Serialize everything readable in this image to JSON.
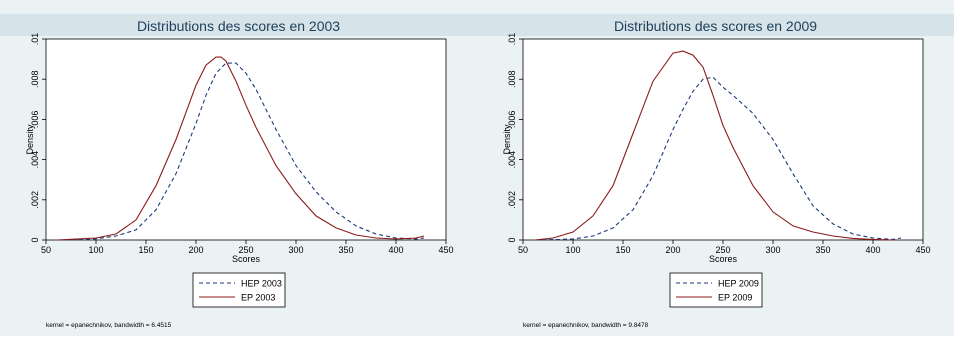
{
  "chart_data": [
    {
      "type": "line",
      "title": "Distributions des scores en 2003",
      "xlabel": "Scores",
      "ylabel": "Density",
      "xlim": [
        50,
        450
      ],
      "ylim": [
        0,
        0.01
      ],
      "x_ticks": [
        "50",
        "100",
        "150",
        "200",
        "250",
        "300",
        "350",
        "400",
        "450"
      ],
      "y_ticks": [
        "0",
        ".002",
        ".004",
        ".006",
        ".008",
        ".01"
      ],
      "legend": "bottom-center",
      "note": "kernel = epanechnikov, bandwidth = 6.4515",
      "series": [
        {
          "name": "HEP 2003",
          "color": "#1a3a7a",
          "dash": "dashed",
          "x": [
            62,
            80,
            100,
            120,
            140,
            160,
            180,
            200,
            210,
            220,
            230,
            240,
            250,
            260,
            280,
            300,
            320,
            340,
            360,
            380,
            400,
            420,
            428
          ],
          "y": [
            0,
            3e-05,
            6e-05,
            0.0002,
            0.0005,
            0.0015,
            0.0033,
            0.0058,
            0.0072,
            0.0083,
            0.0088,
            0.0088,
            0.0083,
            0.0075,
            0.0055,
            0.0037,
            0.0024,
            0.0014,
            0.0007,
            0.0003,
            0.0001,
            5e-05,
            0.0001
          ]
        },
        {
          "name": "EP 2003",
          "color": "#8b1a1a",
          "dash": "solid",
          "x": [
            62,
            80,
            100,
            120,
            140,
            160,
            180,
            200,
            210,
            220,
            225,
            230,
            240,
            250,
            260,
            280,
            300,
            320,
            340,
            360,
            380,
            400,
            420,
            428
          ],
          "y": [
            0,
            5e-05,
            0.0001,
            0.0003,
            0.001,
            0.0027,
            0.005,
            0.0077,
            0.0087,
            0.0091,
            0.0091,
            0.0089,
            0.0079,
            0.0067,
            0.0056,
            0.0037,
            0.0023,
            0.0012,
            0.0006,
            0.00025,
            0.0001,
            5e-05,
            0.0001,
            0.0002
          ]
        }
      ]
    },
    {
      "type": "line",
      "title": "Distributions des scores en 2009",
      "xlabel": "Scores",
      "ylabel": "Density",
      "xlim": [
        50,
        450
      ],
      "ylim": [
        0,
        0.01
      ],
      "x_ticks": [
        "50",
        "100",
        "150",
        "200",
        "250",
        "300",
        "350",
        "400",
        "450"
      ],
      "y_ticks": [
        "0",
        ".002",
        ".004",
        ".006",
        ".008",
        ".01"
      ],
      "legend": "bottom-center",
      "note": "kernel = epanechnikov, bandwidth = 9.8478",
      "series": [
        {
          "name": "HEP 2009",
          "color": "#1a3a7a",
          "dash": "dashed",
          "x": [
            62,
            80,
            100,
            120,
            140,
            160,
            180,
            200,
            210,
            220,
            230,
            240,
            250,
            260,
            280,
            300,
            320,
            340,
            360,
            380,
            400,
            420,
            428
          ],
          "y": [
            0,
            2e-05,
            5e-05,
            0.0002,
            0.0006,
            0.0015,
            0.0032,
            0.0055,
            0.0065,
            0.0074,
            0.008,
            0.0081,
            0.0076,
            0.0072,
            0.0063,
            0.005,
            0.0033,
            0.0017,
            0.0008,
            0.0003,
            0.0001,
            3e-05,
            0.0001
          ]
        },
        {
          "name": "EP 2009",
          "color": "#8b1a1a",
          "dash": "solid",
          "x": [
            62,
            80,
            100,
            120,
            140,
            160,
            180,
            200,
            210,
            220,
            230,
            240,
            250,
            260,
            280,
            300,
            320,
            340,
            360,
            380,
            400,
            420
          ],
          "y": [
            0,
            0.0001,
            0.0004,
            0.0012,
            0.0027,
            0.0053,
            0.0079,
            0.0093,
            0.0094,
            0.0092,
            0.0086,
            0.0072,
            0.0057,
            0.0046,
            0.0027,
            0.0014,
            0.0007,
            0.0004,
            0.0002,
            8e-05,
            3e-05,
            0
          ]
        }
      ]
    }
  ]
}
